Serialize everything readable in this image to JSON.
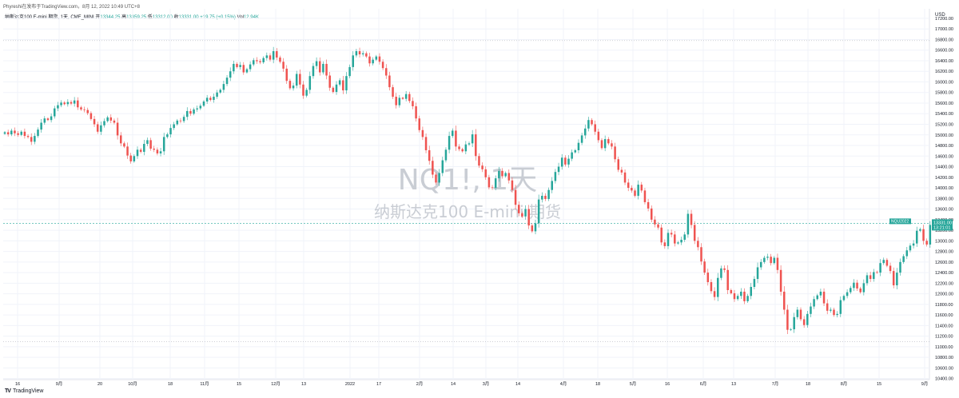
{
  "header": {
    "published": "Phyreshi在发布于TradingView.com，8月 12, 2022 10:49 UTC+8"
  },
  "legend": {
    "symbol": "纳斯达克100 E-mini 期货, 1天, CME_MINI",
    "open_label": "开",
    "open": "13344.25",
    "high_label": "高",
    "high": "13359.25",
    "low_label": "低",
    "low": "13312.00",
    "close_label": "收",
    "close": "13331.00",
    "change": "+19.75 (+0.15%)",
    "vol_label": "Vol",
    "vol": "12.94K"
  },
  "watermark": {
    "line1": "NQ1!, 1天",
    "line2": "纳斯达克100 E-mini 期货"
  },
  "price_tag": {
    "symbol": "NQU2022",
    "price": "13331.00",
    "countdown": "13:21:01"
  },
  "branding": {
    "logo_text": "TV",
    "name": "TradingView"
  },
  "colors": {
    "up": "#26a69a",
    "down": "#ef5350",
    "grid": "#f0f3fa"
  },
  "chart_data": {
    "type": "candlestick",
    "currency": "USD",
    "y_ticks": [
      10400,
      10600,
      10800,
      11000,
      11200,
      11400,
      11600,
      11800,
      12000,
      12200,
      12400,
      12600,
      12800,
      13000,
      13200,
      13400,
      13600,
      13800,
      14000,
      14200,
      14400,
      14600,
      14800,
      15000,
      15200,
      15400,
      15600,
      15800,
      16000,
      16200,
      16400,
      16600,
      16800,
      17000,
      17200
    ],
    "ylim": [
      10380,
      17380
    ],
    "dotted_levels": [
      16780,
      11100
    ],
    "x_ticks": [
      {
        "label": "16",
        "x": 22
      },
      {
        "label": "9月",
        "x": 74
      },
      {
        "label": "20",
        "x": 125
      },
      {
        "label": "10月",
        "x": 166
      },
      {
        "label": "18",
        "x": 213
      },
      {
        "label": "11月",
        "x": 256
      },
      {
        "label": "15",
        "x": 299
      },
      {
        "label": "12月",
        "x": 345
      },
      {
        "label": "13",
        "x": 380
      },
      {
        "label": "2022",
        "x": 438
      },
      {
        "label": "17",
        "x": 474
      },
      {
        "label": "2月",
        "x": 525
      },
      {
        "label": "14",
        "x": 567
      },
      {
        "label": "3月",
        "x": 608
      },
      {
        "label": "14",
        "x": 648
      },
      {
        "label": "4月",
        "x": 705
      },
      {
        "label": "18",
        "x": 748
      },
      {
        "label": "5月",
        "x": 792
      },
      {
        "label": "16",
        "x": 835
      },
      {
        "label": "6月",
        "x": 880
      },
      {
        "label": "13",
        "x": 918
      },
      {
        "label": "7月",
        "x": 970
      },
      {
        "label": "18",
        "x": 1011
      },
      {
        "label": "8月",
        "x": 1056
      },
      {
        "label": "15",
        "x": 1100
      },
      {
        "label": "9月",
        "x": 1157
      }
    ],
    "candle_x_start": 6,
    "candle_x_step": 4.15,
    "close_series": [
      15050,
      15010,
      15080,
      15030,
      15000,
      15060,
      14980,
      14960,
      14870,
      14980,
      15100,
      15230,
      15310,
      15280,
      15350,
      15500,
      15560,
      15610,
      15580,
      15620,
      15590,
      15650,
      15520,
      15480,
      15470,
      15410,
      15300,
      15200,
      15060,
      15180,
      15260,
      15330,
      15270,
      15230,
      14990,
      14840,
      14780,
      14610,
      14500,
      14600,
      14720,
      14680,
      14830,
      14900,
      14740,
      14720,
      14650,
      14690,
      14960,
      15010,
      15130,
      15200,
      15270,
      15260,
      15340,
      15450,
      15400,
      15480,
      15500,
      15550,
      15630,
      15700,
      15660,
      15720,
      15800,
      15850,
      15960,
      16080,
      16200,
      16340,
      16280,
      16320,
      16180,
      16240,
      16330,
      16410,
      16390,
      16370,
      16450,
      16500,
      16420,
      16580,
      16460,
      16380,
      16250,
      16020,
      15880,
      15930,
      16150,
      15950,
      15740,
      15850,
      16110,
      16300,
      16390,
      16180,
      16340,
      16120,
      15890,
      15810,
      15950,
      16030,
      15840,
      16110,
      16280,
      16500,
      16580,
      16520,
      16540,
      16480,
      16350,
      16420,
      16480,
      16380,
      16260,
      16120,
      15900,
      15720,
      15560,
      15700,
      15680,
      15770,
      15640,
      15540,
      15310,
      15090,
      14960,
      14710,
      14510,
      14250,
      14100,
      14280,
      14520,
      14720,
      14980,
      15080,
      14780,
      14730,
      14690,
      14820,
      14840,
      15010,
      14600,
      14420,
      14350,
      14200,
      14010,
      14000,
      14180,
      14320,
      14220,
      14280,
      14140,
      13960,
      13680,
      13520,
      13460,
      13600,
      13290,
      13180,
      13330,
      13780,
      13850,
      13790,
      13960,
      14130,
      14300,
      14400,
      14570,
      14440,
      14550,
      14670,
      14710,
      14850,
      14990,
      15120,
      15280,
      15200,
      15060,
      14900,
      14750,
      14920,
      14840,
      14780,
      14540,
      14340,
      14290,
      14100,
      14000,
      13950,
      13850,
      14060,
      13950,
      13730,
      13610,
      13400,
      13310,
      13250,
      12970,
      12900,
      13150,
      13120,
      12950,
      12970,
      13020,
      13120,
      13510,
      13300,
      13000,
      12880,
      12610,
      12400,
      12220,
      12050,
      11940,
      12300,
      12480,
      12450,
      12070,
      12010,
      11900,
      11960,
      12040,
      11860,
      11960,
      12130,
      12280,
      12500,
      12600,
      12680,
      12700,
      12580,
      12680,
      12450,
      12040,
      11700,
      11320,
      11330,
      11560,
      11700,
      11520,
      11410,
      11620,
      11760,
      11900,
      11970,
      12040,
      11820,
      11680,
      11700,
      11600,
      11620,
      11880,
      11960,
      12030,
      12110,
      12210,
      12100,
      12030,
      12200,
      12350,
      12280,
      12410,
      12400,
      12580,
      12640,
      12530,
      12430,
      12160,
      12400,
      12600,
      12710,
      12820,
      12910,
      12950,
      13190,
      13220,
      13000,
      12930,
      13300,
      13340,
      13310,
      13331
    ]
  }
}
